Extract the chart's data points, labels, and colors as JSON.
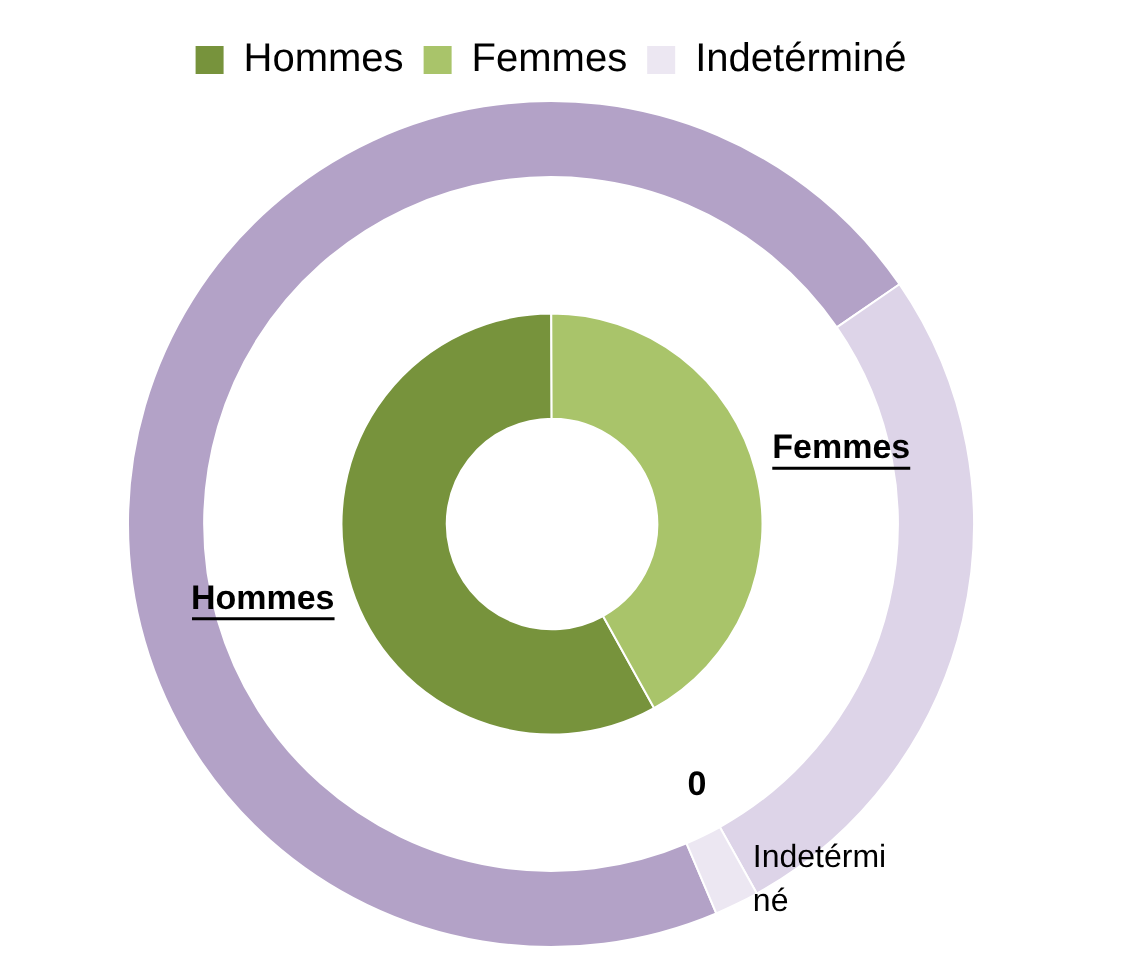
{
  "chart_data": {
    "type": "donut",
    "categories": [
      "Hommes",
      "Femmes",
      "Indetérminé"
    ],
    "legend": "top",
    "series": [
      {
        "values": [
          58,
          42,
          0
        ],
        "colors": [
          "#77933c",
          "#a9c46a",
          "#77933c"
        ],
        "value_labels": [
          "Hommes",
          "Femmes",
          "0"
        ]
      },
      {
        "values": [
          71.8,
          26.5,
          1.7
        ],
        "colors": [
          "#b3a2c7",
          "#ddd4e8",
          "#ece7f2"
        ],
        "value_labels": [
          null,
          null,
          "Indetérminé"
        ]
      }
    ]
  }
}
